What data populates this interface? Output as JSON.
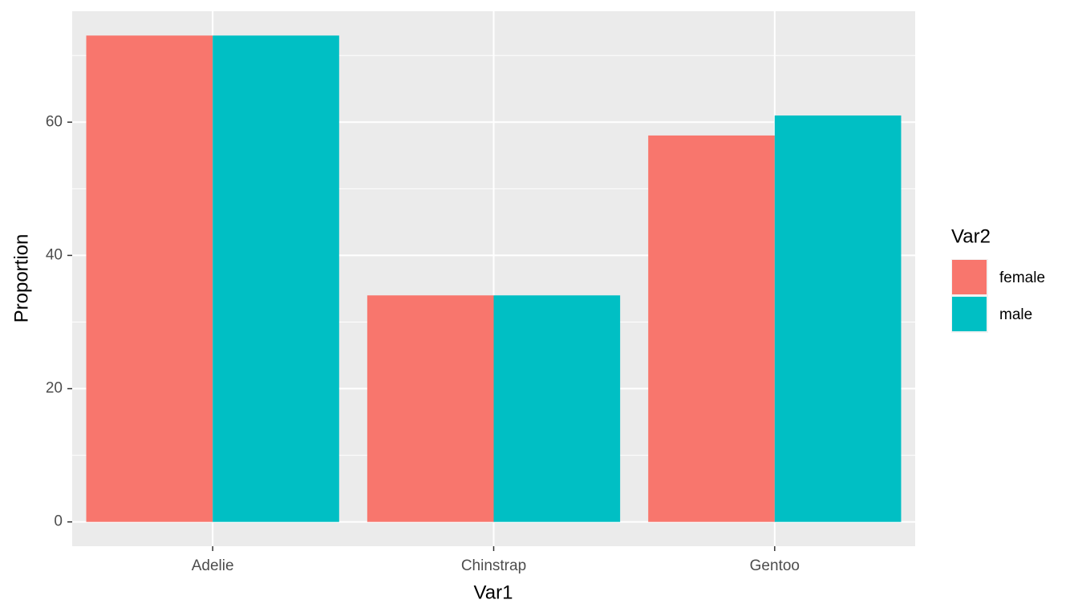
{
  "chart_data": {
    "type": "bar",
    "categories": [
      "Adelie",
      "Chinstrap",
      "Gentoo"
    ],
    "series": [
      {
        "name": "female",
        "color": "#f8766d",
        "values": [
          73,
          34,
          58
        ]
      },
      {
        "name": "male",
        "color": "#00bfc4",
        "values": [
          73,
          34,
          61
        ]
      }
    ],
    "x_label": "Var1",
    "y_label": "Proportion",
    "legend_title": "Var2",
    "ylim": [
      -3.65,
      76.65
    ],
    "yticks": [
      0,
      20,
      40,
      60
    ],
    "grid": true,
    "minor_grid": true,
    "legend_position": "right"
  }
}
